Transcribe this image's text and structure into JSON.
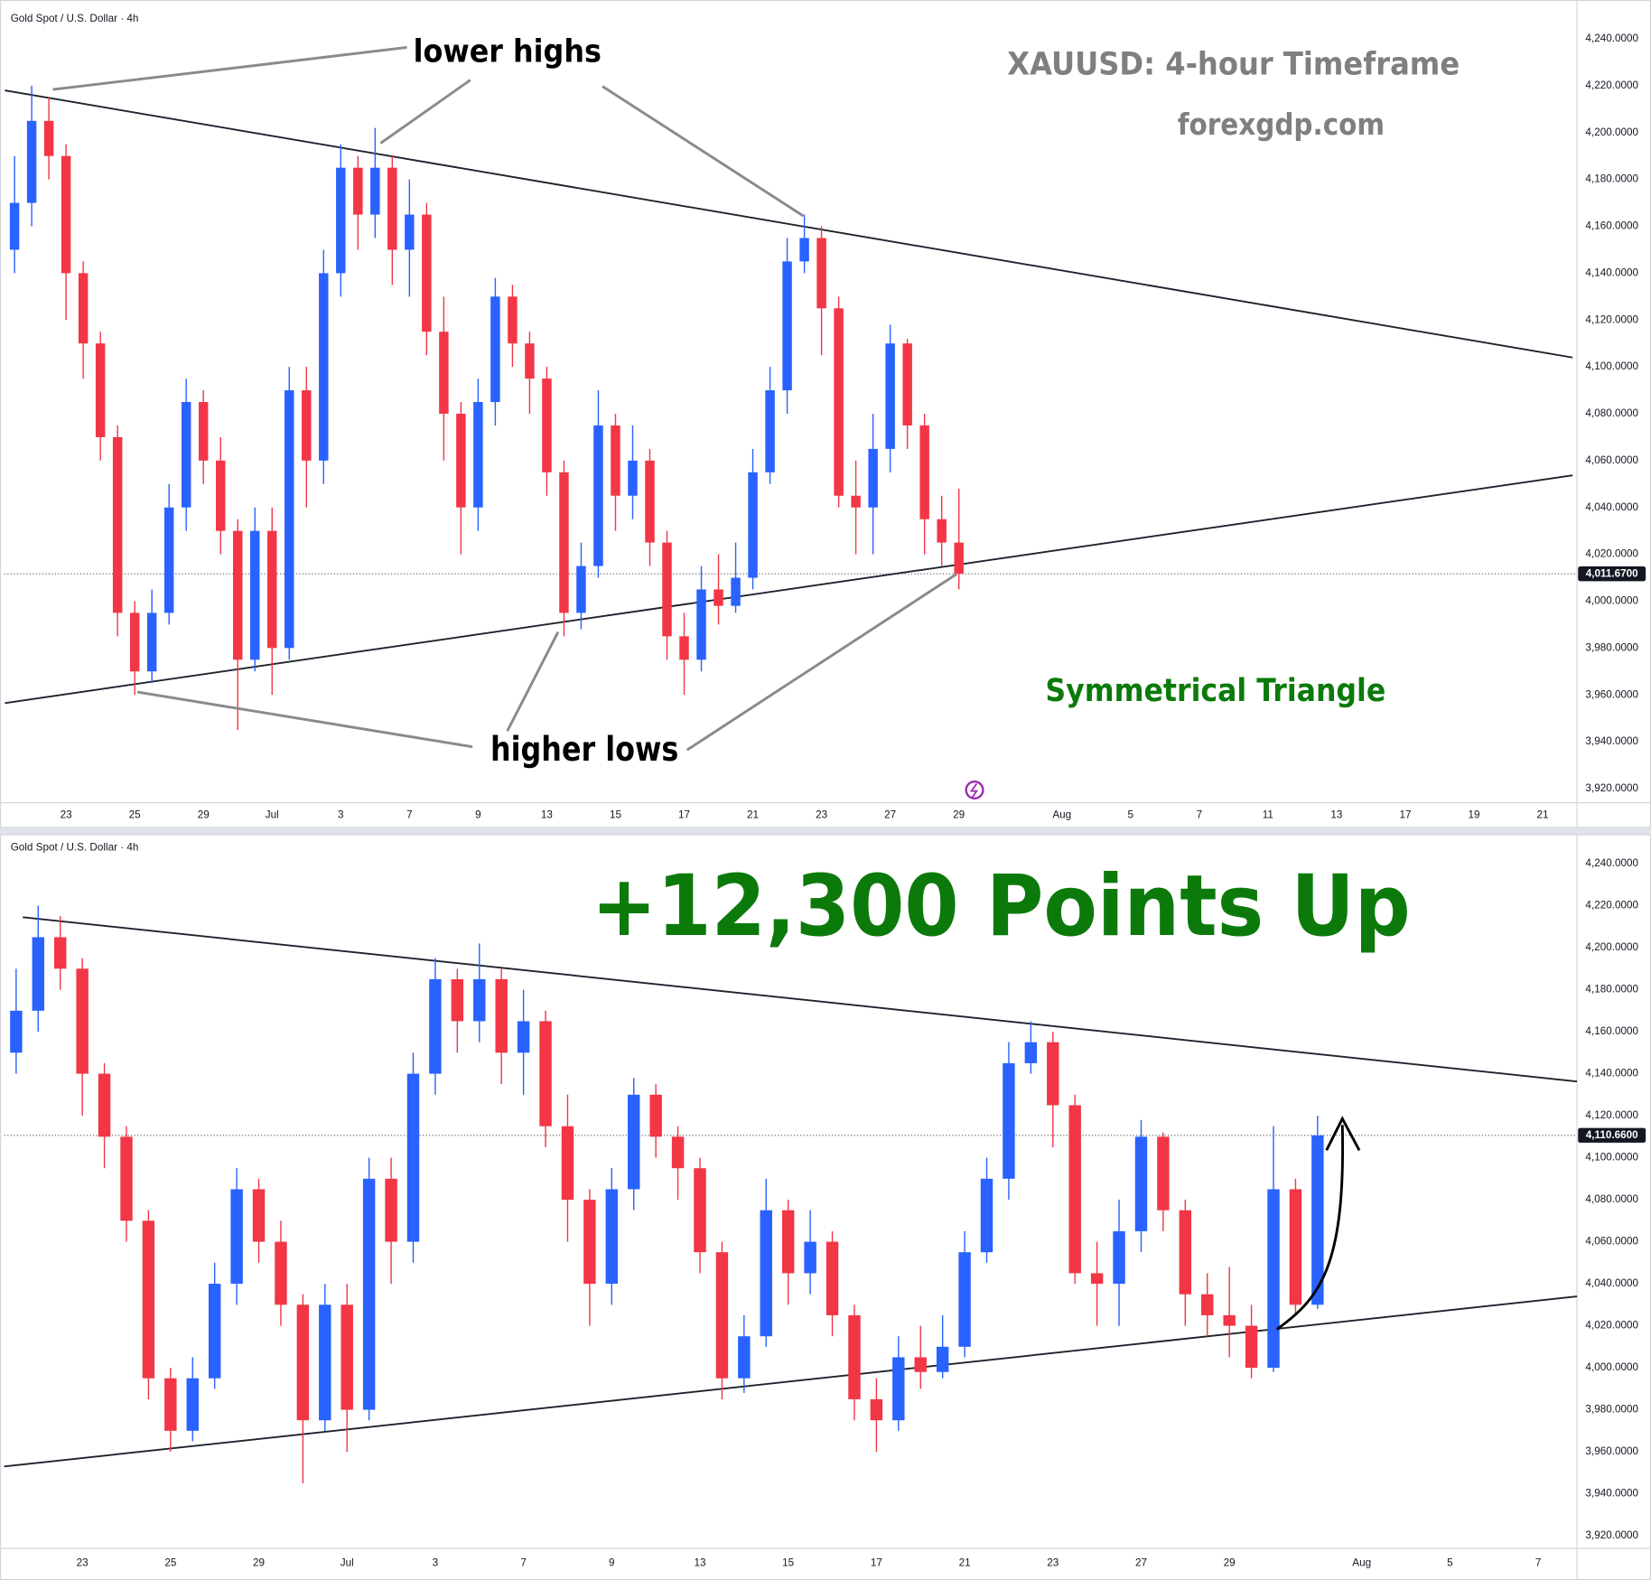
{
  "chart_data": [
    {
      "type": "candlestick",
      "header": "Gold Spot / U.S. Dollar · 4h",
      "title": "XAUUSD: 4-hour Timeframe",
      "subtitle": "forexgdp.com",
      "annotations": [
        "lower highs",
        "higher lows",
        "Symmetrical Triangle"
      ],
      "up_color": "#2962ff",
      "down_color": "#f23645",
      "trend_color": "#1e222d",
      "grid": false,
      "x": [
        -1.5,
        -1,
        -0.5,
        0,
        0.5,
        1,
        1.5,
        2,
        2.5,
        3,
        3.5,
        4,
        4.5,
        5,
        5.5,
        6,
        6.5,
        7,
        7.5,
        8,
        8.5,
        9,
        9.5,
        10,
        10.5,
        11,
        11.5,
        12,
        12.5,
        13,
        13.5,
        14,
        14.5,
        15,
        15.5,
        16,
        16.5,
        17,
        17.5,
        18,
        18.5,
        19,
        19.5,
        20,
        20.5,
        21,
        21.5,
        22,
        22.5,
        23,
        23.5,
        24,
        24.5,
        25,
        25.5,
        26
      ],
      "open": [
        4150,
        4170,
        4205,
        4190,
        4140,
        4110,
        4070,
        3995,
        3970,
        3995,
        4040,
        4085,
        4060,
        4030,
        3975,
        4030,
        3980,
        4090,
        4060,
        4140,
        4185,
        4165,
        4185,
        4150,
        4165,
        4115,
        4080,
        4040,
        4085,
        4130,
        4110,
        4095,
        4055,
        3995,
        4015,
        4075,
        4045,
        4060,
        4025,
        3985,
        3975,
        4005,
        3998,
        4010,
        4055,
        4090,
        4145,
        4155,
        4125,
        4045,
        4040,
        4065,
        4110,
        4075,
        4035,
        4025
      ],
      "high": [
        4190,
        4220,
        4215,
        4195,
        4145,
        4115,
        4075,
        4000,
        4005,
        4050,
        4095,
        4090,
        4070,
        4035,
        4040,
        4040,
        4100,
        4100,
        4150,
        4195,
        4190,
        4202,
        4190,
        4180,
        4170,
        4130,
        4085,
        4095,
        4138,
        4135,
        4115,
        4100,
        4060,
        4025,
        4090,
        4080,
        4075,
        4065,
        4030,
        3995,
        4015,
        4020,
        4025,
        4065,
        4100,
        4155,
        4165,
        4160,
        4130,
        4060,
        4080,
        4118,
        4112,
        4080,
        4045,
        4048
      ],
      "low": [
        4140,
        4160,
        4180,
        4120,
        4095,
        4060,
        3985,
        3960,
        3965,
        3990,
        4030,
        4050,
        4020,
        3945,
        3970,
        3960,
        3975,
        4040,
        4050,
        4130,
        4150,
        4155,
        4135,
        4130,
        4105,
        4060,
        4020,
        4030,
        4075,
        4100,
        4080,
        4045,
        3985,
        3988,
        4010,
        4030,
        4035,
        4015,
        3975,
        3960,
        3970,
        3990,
        3995,
        4005,
        4050,
        4080,
        4140,
        4105,
        4040,
        4020,
        4020,
        4055,
        4065,
        4020,
        4015,
        4005
      ],
      "close": [
        4170,
        4205,
        4190,
        4140,
        4110,
        4070,
        3995,
        3970,
        3995,
        4040,
        4085,
        4060,
        4030,
        3975,
        4030,
        3980,
        4090,
        4060,
        4140,
        4185,
        4165,
        4185,
        4150,
        4165,
        4115,
        4080,
        4040,
        4085,
        4130,
        4110,
        4095,
        4055,
        3995,
        4015,
        4075,
        4045,
        4060,
        4025,
        3985,
        3975,
        4005,
        3998,
        4010,
        4055,
        4090,
        4145,
        4155,
        4125,
        4045,
        4040,
        4065,
        4110,
        4075,
        4035,
        4025,
        4011.67
      ],
      "trendlines": [
        {
          "x": [
            -1.78,
            43.87
          ],
          "y": [
            4218,
            4104
          ]
        },
        {
          "x": [
            -1.78,
            43.87
          ],
          "y": [
            3956.5,
            4053.7
          ]
        }
      ],
      "last_price": {
        "value": 4011.67,
        "label": "4,011.6700"
      },
      "xlim": [
        -1.8,
        44.0
      ],
      "xticks": [
        {
          "value": 0,
          "label": "23"
        },
        {
          "value": 2,
          "label": "25"
        },
        {
          "value": 4,
          "label": "29"
        },
        {
          "value": 6,
          "label": "Jul"
        },
        {
          "value": 8,
          "label": "3"
        },
        {
          "value": 10,
          "label": "7"
        },
        {
          "value": 12,
          "label": "9"
        },
        {
          "value": 14,
          "label": "13"
        },
        {
          "value": 16,
          "label": "15"
        },
        {
          "value": 18,
          "label": "17"
        },
        {
          "value": 20,
          "label": "21"
        },
        {
          "value": 22,
          "label": "23"
        },
        {
          "value": 24,
          "label": "27"
        },
        {
          "value": 26,
          "label": "29"
        },
        {
          "value": 29,
          "label": "Aug"
        },
        {
          "value": 31,
          "label": "5"
        },
        {
          "value": 33,
          "label": "7"
        },
        {
          "value": 35,
          "label": "11"
        },
        {
          "value": 37,
          "label": "13"
        },
        {
          "value": 39,
          "label": "17"
        },
        {
          "value": 41,
          "label": "19"
        },
        {
          "value": 43,
          "label": "21"
        }
      ],
      "ylim": [
        3914,
        4253
      ],
      "yticks": [
        {
          "value": 3920,
          "label": "3,920.0000"
        },
        {
          "value": 3940,
          "label": "3,940.0000"
        },
        {
          "value": 3960,
          "label": "3,960.0000"
        },
        {
          "value": 3980,
          "label": "3,980.0000"
        },
        {
          "value": 4000,
          "label": "4,000.0000"
        },
        {
          "value": 4020,
          "label": "4,020.0000"
        },
        {
          "value": 4040,
          "label": "4,040.0000"
        },
        {
          "value": 4060,
          "label": "4,060.0000"
        },
        {
          "value": 4080,
          "label": "4,080.0000"
        },
        {
          "value": 4100,
          "label": "4,100.0000"
        },
        {
          "value": 4120,
          "label": "4,120.0000"
        },
        {
          "value": 4140,
          "label": "4,140.0000"
        },
        {
          "value": 4160,
          "label": "4,160.0000"
        },
        {
          "value": 4180,
          "label": "4,180.0000"
        },
        {
          "value": 4200,
          "label": "4,200.0000"
        },
        {
          "value": 4220,
          "label": "4,220.0000"
        },
        {
          "value": 4240,
          "label": "4,240.0000"
        }
      ]
    },
    {
      "type": "candlestick",
      "header": "Gold Spot / U.S. Dollar · 4h",
      "title": "+12,300 Points Up",
      "up_color": "#2962ff",
      "down_color": "#f23645",
      "trend_color": "#1e222d",
      "grid": false,
      "x": [
        -1.5,
        -1,
        -0.5,
        0,
        0.5,
        1,
        1.5,
        2,
        2.5,
        3,
        3.5,
        4,
        4.5,
        5,
        5.5,
        6,
        6.5,
        7,
        7.5,
        8,
        8.5,
        9,
        9.5,
        10,
        10.5,
        11,
        11.5,
        12,
        12.5,
        13,
        13.5,
        14,
        14.5,
        15,
        15.5,
        16,
        16.5,
        17,
        17.5,
        18,
        18.5,
        19,
        19.5,
        20,
        20.5,
        21,
        21.5,
        22,
        22.5,
        23,
        23.5,
        24,
        24.5,
        25,
        25.5,
        26,
        26.5,
        27,
        27.5,
        28
      ],
      "open": [
        4150,
        4170,
        4205,
        4190,
        4140,
        4110,
        4070,
        3995,
        3970,
        3995,
        4040,
        4085,
        4060,
        4030,
        3975,
        4030,
        3980,
        4090,
        4060,
        4140,
        4185,
        4165,
        4185,
        4150,
        4165,
        4115,
        4080,
        4040,
        4085,
        4130,
        4110,
        4095,
        4055,
        3995,
        4015,
        4075,
        4045,
        4060,
        4025,
        3985,
        3975,
        4005,
        3998,
        4010,
        4055,
        4090,
        4145,
        4155,
        4125,
        4045,
        4040,
        4065,
        4110,
        4075,
        4035,
        4025,
        4020,
        4000,
        4085,
        4030
      ],
      "high": [
        4190,
        4220,
        4215,
        4195,
        4145,
        4115,
        4075,
        4000,
        4005,
        4050,
        4095,
        4090,
        4070,
        4035,
        4040,
        4040,
        4100,
        4100,
        4150,
        4195,
        4190,
        4202,
        4190,
        4180,
        4170,
        4130,
        4085,
        4095,
        4138,
        4135,
        4115,
        4100,
        4060,
        4025,
        4090,
        4080,
        4075,
        4065,
        4030,
        3995,
        4015,
        4020,
        4025,
        4065,
        4100,
        4155,
        4165,
        4160,
        4130,
        4060,
        4080,
        4118,
        4112,
        4080,
        4045,
        4048,
        4030,
        4115,
        4090,
        4120
      ],
      "low": [
        4140,
        4160,
        4180,
        4120,
        4095,
        4060,
        3985,
        3960,
        3965,
        3990,
        4030,
        4050,
        4020,
        3945,
        3970,
        3960,
        3975,
        4040,
        4050,
        4130,
        4150,
        4155,
        4135,
        4130,
        4105,
        4060,
        4020,
        4030,
        4075,
        4100,
        4080,
        4045,
        3985,
        3988,
        4010,
        4030,
        4035,
        4015,
        3975,
        3960,
        3970,
        3990,
        3995,
        4005,
        4050,
        4080,
        4140,
        4105,
        4040,
        4020,
        4020,
        4055,
        4065,
        4020,
        4015,
        4005,
        3995,
        3998,
        4025,
        4028
      ],
      "close": [
        4170,
        4205,
        4190,
        4140,
        4110,
        4070,
        3995,
        3970,
        3995,
        4040,
        4085,
        4060,
        4030,
        3975,
        4030,
        3980,
        4090,
        4060,
        4140,
        4185,
        4165,
        4185,
        4150,
        4165,
        4115,
        4080,
        4040,
        4085,
        4130,
        4110,
        4095,
        4055,
        3995,
        4015,
        4075,
        4045,
        4060,
        4025,
        3985,
        3975,
        4005,
        3998,
        4010,
        4055,
        4090,
        4145,
        4155,
        4125,
        4045,
        4040,
        4065,
        4110,
        4075,
        4035,
        4025,
        4020,
        4000,
        4085,
        4030,
        4110.66
      ],
      "trendlines": [
        {
          "x": [
            -1.35,
            33.88
          ],
          "y": [
            4214.5,
            4136.3
          ]
        },
        {
          "x": [
            -1.77,
            33.88
          ],
          "y": [
            3953,
            4034
          ]
        }
      ],
      "last_price": {
        "value": 4110.66,
        "label": "4,110.6600"
      },
      "xlim": [
        -1.77,
        33.88
      ],
      "xticks": [
        {
          "value": 0,
          "label": "23"
        },
        {
          "value": 2,
          "label": "25"
        },
        {
          "value": 4,
          "label": "29"
        },
        {
          "value": 6,
          "label": "Jul"
        },
        {
          "value": 8,
          "label": "3"
        },
        {
          "value": 10,
          "label": "7"
        },
        {
          "value": 12,
          "label": "9"
        },
        {
          "value": 14,
          "label": "13"
        },
        {
          "value": 16,
          "label": "15"
        },
        {
          "value": 18,
          "label": "17"
        },
        {
          "value": 20,
          "label": "21"
        },
        {
          "value": 22,
          "label": "23"
        },
        {
          "value": 24,
          "label": "27"
        },
        {
          "value": 26,
          "label": "29"
        },
        {
          "value": 29,
          "label": "Aug"
        },
        {
          "value": 31,
          "label": "5"
        },
        {
          "value": 33,
          "label": "7"
        }
      ],
      "ylim": [
        3914,
        4250
      ],
      "yticks": [
        {
          "value": 3920,
          "label": "3,920.0000"
        },
        {
          "value": 3940,
          "label": "3,940.0000"
        },
        {
          "value": 3960,
          "label": "3,960.0000"
        },
        {
          "value": 3980,
          "label": "3,980.0000"
        },
        {
          "value": 4000,
          "label": "4,000.0000"
        },
        {
          "value": 4020,
          "label": "4,020.0000"
        },
        {
          "value": 4040,
          "label": "4,040.0000"
        },
        {
          "value": 4060,
          "label": "4,060.0000"
        },
        {
          "value": 4080,
          "label": "4,080.0000"
        },
        {
          "value": 4100,
          "label": "4,100.0000"
        },
        {
          "value": 4120,
          "label": "4,120.0000"
        },
        {
          "value": 4140,
          "label": "4,140.0000"
        },
        {
          "value": 4160,
          "label": "4,160.0000"
        },
        {
          "value": 4180,
          "label": "4,180.0000"
        },
        {
          "value": 4200,
          "label": "4,200.0000"
        },
        {
          "value": 4220,
          "label": "4,220.0000"
        },
        {
          "value": 4240,
          "label": "4,240.0000"
        }
      ]
    }
  ]
}
